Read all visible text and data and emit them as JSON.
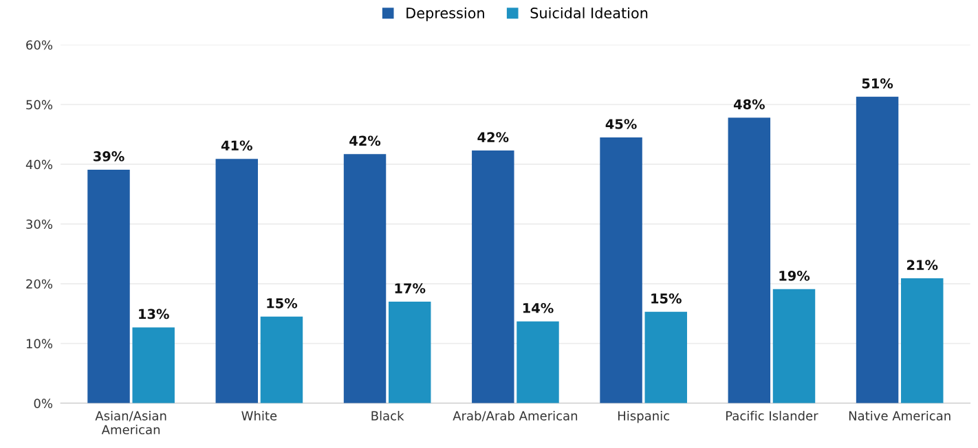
{
  "chart_data": {
    "type": "bar",
    "categories": [
      "Asian/Asian\nAmerican",
      "White",
      "Black",
      "Arab/Arab American",
      "Hispanic",
      "Pacific Islander",
      "Native American"
    ],
    "series": [
      {
        "name": "Depression",
        "color": "#205ea6",
        "values": [
          39.1,
          40.9,
          41.7,
          42.3,
          44.5,
          47.8,
          51.3
        ],
        "value_labels": [
          "39%",
          "41%",
          "42%",
          "42%",
          "45%",
          "48%",
          "51%"
        ]
      },
      {
        "name": "Suicidal Ideation",
        "color": "#1e92c2",
        "values": [
          12.7,
          14.5,
          17.0,
          13.7,
          15.3,
          19.1,
          20.9
        ],
        "value_labels": [
          "13%",
          "15%",
          "17%",
          "14%",
          "15%",
          "19%",
          "21%"
        ]
      }
    ],
    "ylim": [
      0,
      60
    ],
    "yticks": [
      {
        "value": 0,
        "label": "0%"
      },
      {
        "value": 10,
        "label": "10%"
      },
      {
        "value": 20,
        "label": "20%"
      },
      {
        "value": 30,
        "label": "30%"
      },
      {
        "value": 40,
        "label": "40%"
      },
      {
        "value": 50,
        "label": "50%"
      },
      {
        "value": 60,
        "label": "60%"
      }
    ],
    "grid": "y",
    "legend": "top"
  }
}
